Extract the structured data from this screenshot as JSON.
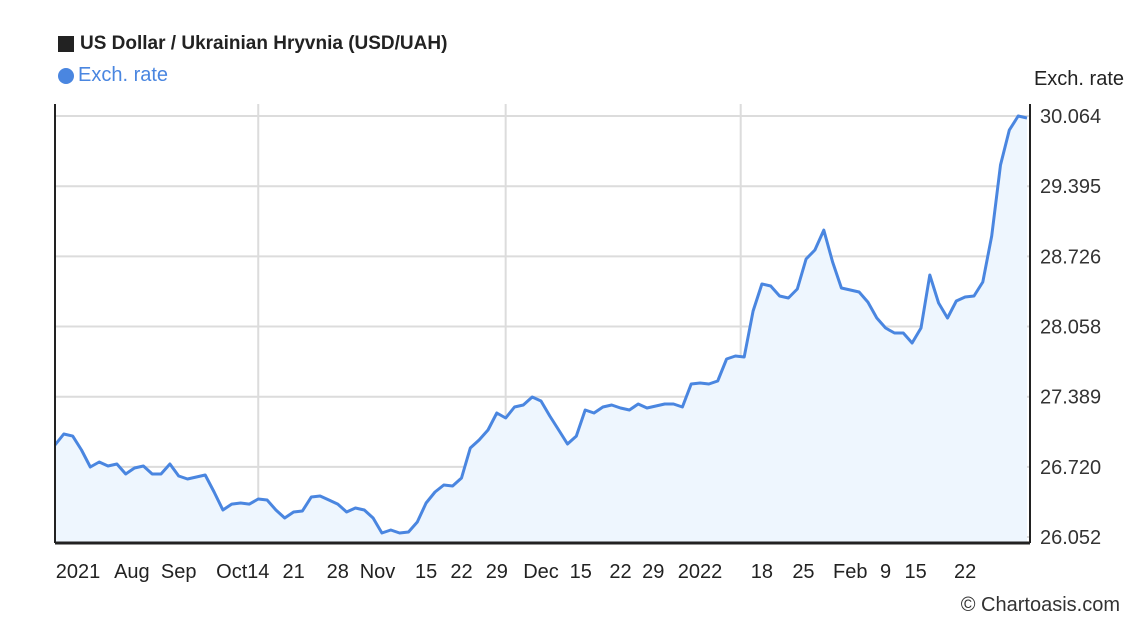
{
  "chart_data": {
    "type": "area",
    "title": "US Dollar / Ukrainian Hryvnia (USD/UAH)",
    "ylabel": "Exch. rate",
    "ylim": [
      26.052,
      30.064
    ],
    "yticks": [
      "26.052",
      "26.720",
      "27.389",
      "28.058",
      "28.726",
      "29.395",
      "30.064"
    ],
    "grid": true,
    "legend_position": "top-left",
    "series": [
      {
        "name": "Exch. rate",
        "color": "#4a86e0",
        "fill": "#eef6fe",
        "values": [
          26.929,
          27.034,
          27.014,
          26.881,
          26.719,
          26.767,
          26.729,
          26.748,
          26.652,
          26.71,
          26.729,
          26.652,
          26.652,
          26.748,
          26.633,
          26.605,
          26.624,
          26.643,
          26.481,
          26.309,
          26.366,
          26.376,
          26.366,
          26.414,
          26.405,
          26.309,
          26.233,
          26.29,
          26.3,
          26.433,
          26.443,
          26.405,
          26.366,
          26.29,
          26.328,
          26.309,
          26.233,
          26.09,
          26.119,
          26.09,
          26.1,
          26.195,
          26.376,
          26.481,
          26.548,
          26.538,
          26.614,
          26.9,
          26.976,
          27.072,
          27.234,
          27.186,
          27.291,
          27.31,
          27.386,
          27.348,
          27.205,
          27.072,
          26.938,
          27.014,
          27.262,
          27.234,
          27.291,
          27.31,
          27.281,
          27.262,
          27.319,
          27.281,
          27.3,
          27.319,
          27.319,
          27.291,
          27.51,
          27.52,
          27.51,
          27.539,
          27.748,
          27.777,
          27.767,
          28.206,
          28.463,
          28.444,
          28.349,
          28.33,
          28.415,
          28.701,
          28.787,
          28.977,
          28.673,
          28.425,
          28.406,
          28.387,
          28.291,
          28.139,
          28.044,
          27.996,
          27.996,
          27.901,
          28.044,
          28.549,
          28.282,
          28.139,
          28.301,
          28.339,
          28.349,
          28.482,
          28.92,
          29.597,
          29.93,
          30.064,
          30.045
        ]
      }
    ],
    "xticks": [
      {
        "label": "2021",
        "at": 2.6
      },
      {
        "label": "Aug",
        "at": 8.7
      },
      {
        "label": "Sep",
        "at": 14
      },
      {
        "label": "Oct",
        "at": 20
      },
      {
        "label": "14",
        "at": 23
      },
      {
        "label": "21",
        "at": 27
      },
      {
        "label": "28",
        "at": 32
      },
      {
        "label": "Nov",
        "at": 36.5
      },
      {
        "label": "15",
        "at": 42
      },
      {
        "label": "22",
        "at": 46
      },
      {
        "label": "29",
        "at": 50
      },
      {
        "label": "Dec",
        "at": 55
      },
      {
        "label": "15",
        "at": 59.5
      },
      {
        "label": "22",
        "at": 64
      },
      {
        "label": "29",
        "at": 67.7
      },
      {
        "label": "2022",
        "at": 73
      },
      {
        "label": "18",
        "at": 80
      },
      {
        "label": "25",
        "at": 84.7
      },
      {
        "label": "Feb",
        "at": 90
      },
      {
        "label": "9",
        "at": 94
      },
      {
        "label": "15",
        "at": 97.4
      },
      {
        "label": "22",
        "at": 103
      }
    ],
    "xgrid_at": [
      23,
      51,
      77.6
    ]
  },
  "copyright": "© Chartoasis.com"
}
